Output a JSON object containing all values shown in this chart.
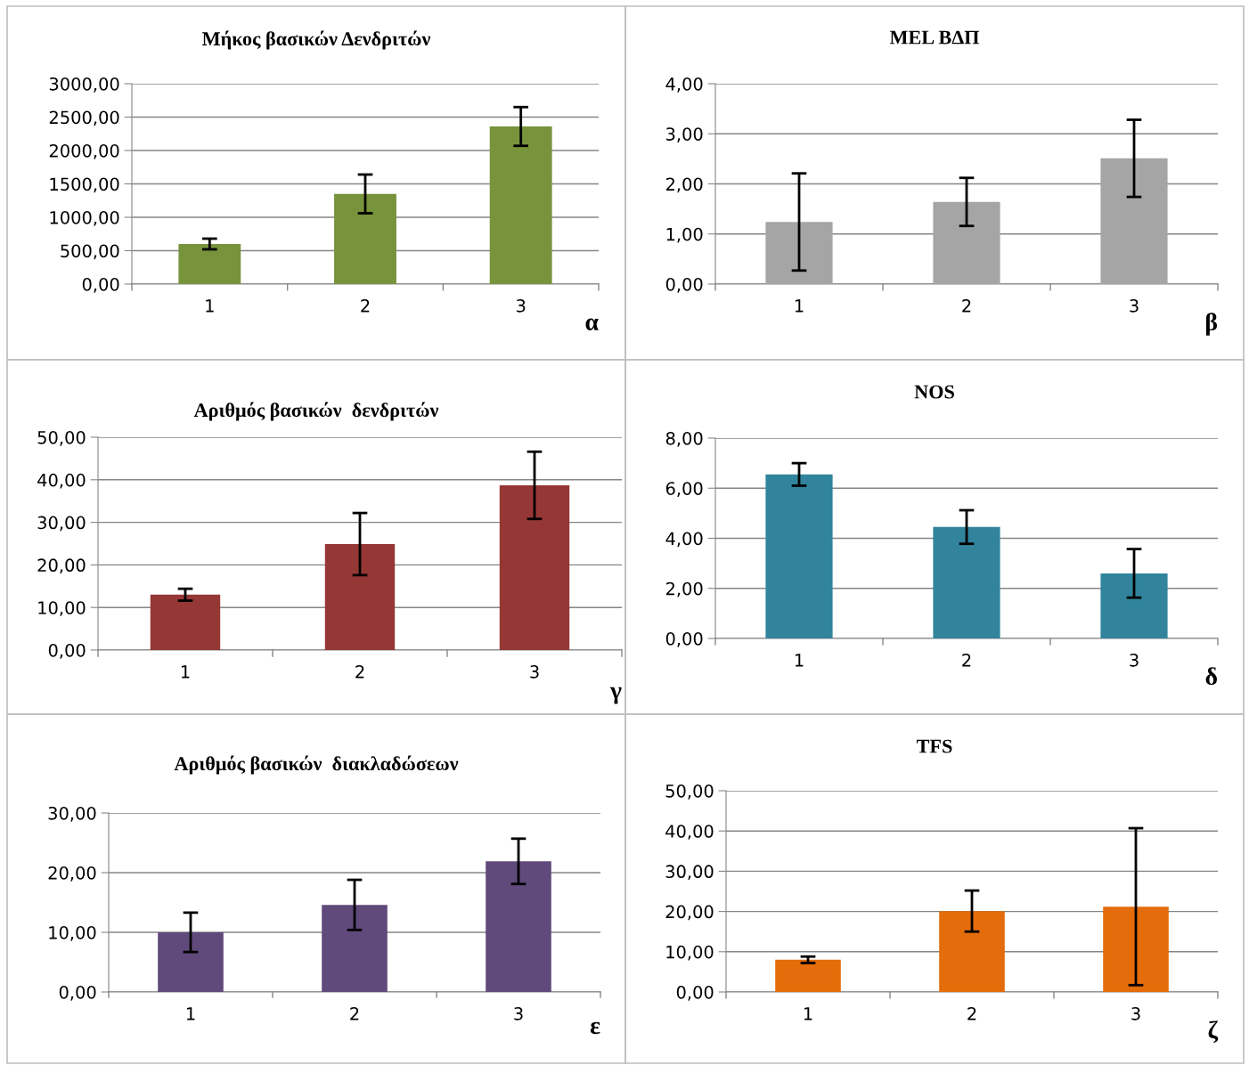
{
  "chart_data": [
    {
      "type": "bar",
      "title": "Μήκος βασικών Δενδριτών",
      "categories": [
        "1",
        "2",
        "3"
      ],
      "values": [
        600,
        1350,
        2360
      ],
      "errors": [
        80,
        290,
        290
      ],
      "color": "#77933c",
      "ylim": [
        0,
        3000
      ],
      "yticks": [
        {
          "value": 0,
          "label": "0,00"
        },
        {
          "value": 500,
          "label": "500,00"
        },
        {
          "value": 1000,
          "label": "1000,00"
        },
        {
          "value": 1500,
          "label": "1500,00"
        },
        {
          "value": 2000,
          "label": "2000,00"
        },
        {
          "value": 2500,
          "label": "2500,00"
        },
        {
          "value": 3000,
          "label": "3000,00"
        }
      ],
      "grid": "y",
      "annotations": [
        "α"
      ]
    },
    {
      "type": "bar",
      "title": "MEL ΒΔΠ",
      "categories": [
        "1",
        "2",
        "3"
      ],
      "values": [
        1.24,
        1.64,
        2.51
      ],
      "errors": [
        0.97,
        0.48,
        0.77
      ],
      "color": "#a5a5a5",
      "ylim": [
        0,
        4
      ],
      "yticks": [
        {
          "value": 0,
          "label": "0,00"
        },
        {
          "value": 1,
          "label": "1,00"
        },
        {
          "value": 2,
          "label": "2,00"
        },
        {
          "value": 3,
          "label": "3,00"
        },
        {
          "value": 4,
          "label": "4,00"
        }
      ],
      "grid": "y",
      "annotations": [
        "β"
      ]
    },
    {
      "type": "bar",
      "title": "Αριθμός βασικών  δενδριτών",
      "categories": [
        "1",
        "2",
        "3"
      ],
      "values": [
        13.0,
        24.9,
        38.7
      ],
      "errors": [
        1.4,
        7.3,
        7.9
      ],
      "color": "#953735",
      "ylim": [
        0,
        50
      ],
      "yticks": [
        {
          "value": 0,
          "label": "0,00"
        },
        {
          "value": 10,
          "label": "10,00"
        },
        {
          "value": 20,
          "label": "20,00"
        },
        {
          "value": 30,
          "label": "30,00"
        },
        {
          "value": 40,
          "label": "40,00"
        },
        {
          "value": 50,
          "label": "50,00"
        }
      ],
      "grid": "y",
      "annotations": [
        "γ"
      ]
    },
    {
      "type": "bar",
      "title": "NOS",
      "categories": [
        "1",
        "2",
        "3"
      ],
      "values": [
        6.55,
        4.45,
        2.6
      ],
      "errors": [
        0.45,
        0.67,
        0.97
      ],
      "color": "#31849b",
      "ylim": [
        0,
        8
      ],
      "yticks": [
        {
          "value": 0,
          "label": "0,00"
        },
        {
          "value": 2,
          "label": "2,00"
        },
        {
          "value": 4,
          "label": "4,00"
        },
        {
          "value": 6,
          "label": "6,00"
        },
        {
          "value": 8,
          "label": "8,00"
        }
      ],
      "grid": "y",
      "annotations": [
        "δ"
      ]
    },
    {
      "type": "bar",
      "title": "Αριθμός βασικών  διακλαδώσεων",
      "categories": [
        "1",
        "2",
        "3"
      ],
      "values": [
        10.0,
        14.6,
        21.9
      ],
      "errors": [
        3.3,
        4.2,
        3.8
      ],
      "color": "#604a7b",
      "ylim": [
        0,
        30
      ],
      "yticks": [
        {
          "value": 0,
          "label": "0,00"
        },
        {
          "value": 10,
          "label": "10,00"
        },
        {
          "value": 20,
          "label": "20,00"
        },
        {
          "value": 30,
          "label": "30,00"
        }
      ],
      "grid": "y",
      "annotations": [
        "ε"
      ]
    },
    {
      "type": "bar",
      "title": "TFS",
      "categories": [
        "1",
        "2",
        "3"
      ],
      "values": [
        8.0,
        20.1,
        21.2
      ],
      "errors": [
        0.8,
        5.1,
        19.5
      ],
      "color": "#e46c0a",
      "ylim": [
        0,
        50
      ],
      "yticks": [
        {
          "value": 0,
          "label": "0,00"
        },
        {
          "value": 10,
          "label": "10,00"
        },
        {
          "value": 20,
          "label": "20,00"
        },
        {
          "value": 30,
          "label": "30,00"
        },
        {
          "value": 40,
          "label": "40,00"
        },
        {
          "value": 50,
          "label": "50,00"
        }
      ],
      "grid": "y",
      "annotations": [
        "ζ"
      ]
    }
  ]
}
